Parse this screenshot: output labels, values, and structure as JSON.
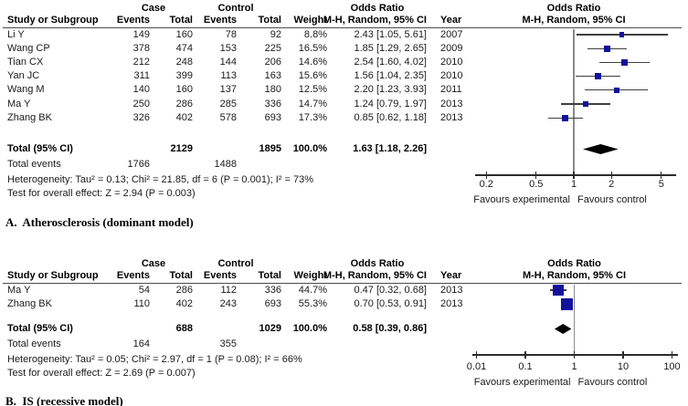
{
  "colors": {
    "marker_square": "#11119c",
    "ci_line": "#3f3f3f",
    "null_line": "#8a8a8a",
    "axis_line": "#2b2b2b",
    "diamond": "#000000",
    "header_rule": "#4d4d4d",
    "text": "#1a1a1a"
  },
  "labels": {
    "group_case": "Case",
    "group_control": "Control",
    "group_or": "Odds Ratio",
    "col_study": "Study or Subgroup",
    "col_events": "Events",
    "col_total": "Total",
    "col_weight": "Weight",
    "col_mh": "M-H, Random, 95% CI",
    "col_year": "Year",
    "plot_title": "Odds Ratio",
    "plot_subtitle": "M-H, Random, 95% CI",
    "total_label": "Total (95% CI)",
    "total_events_label": "Total events",
    "favours_left": "Favours experimental",
    "favours_right": "Favours control"
  },
  "chart_data": [
    {
      "type": "forest",
      "caption": "A.  Atherosclerosis (dominant model)",
      "effect_measure": "Odds Ratio",
      "method": "M-H, Random, 95% CI",
      "axis": {
        "scale": "log",
        "ticks": [
          0.2,
          0.5,
          1,
          2,
          5
        ],
        "tick_labels": [
          "0.2",
          "0.5",
          "1",
          "2",
          "5"
        ]
      },
      "studies": [
        {
          "study": "Li Y",
          "case_events": "149",
          "case_total": "160",
          "control_events": "78",
          "control_total": "92",
          "weight": "8.8%",
          "weight_pct": 8.8,
          "or": 2.43,
          "ci_low": 1.05,
          "ci_high": 5.61,
          "or_text": "2.43 [1.05, 5.61]",
          "year": "2007"
        },
        {
          "study": "Wang CP",
          "case_events": "378",
          "case_total": "474",
          "control_events": "153",
          "control_total": "225",
          "weight": "16.5%",
          "weight_pct": 16.5,
          "or": 1.85,
          "ci_low": 1.29,
          "ci_high": 2.65,
          "or_text": "1.85 [1.29, 2.65]",
          "year": "2009"
        },
        {
          "study": "Tian CX",
          "case_events": "212",
          "case_total": "248",
          "control_events": "144",
          "control_total": "206",
          "weight": "14.6%",
          "weight_pct": 14.6,
          "or": 2.54,
          "ci_low": 1.6,
          "ci_high": 4.02,
          "or_text": "2.54 [1.60, 4.02]",
          "year": "2010"
        },
        {
          "study": "Yan JC",
          "case_events": "311",
          "case_total": "399",
          "control_events": "113",
          "control_total": "163",
          "weight": "15.6%",
          "weight_pct": 15.6,
          "or": 1.56,
          "ci_low": 1.04,
          "ci_high": 2.35,
          "or_text": "1.56 [1.04, 2.35]",
          "year": "2010"
        },
        {
          "study": "Wang M",
          "case_events": "140",
          "case_total": "160",
          "control_events": "137",
          "control_total": "180",
          "weight": "12.5%",
          "weight_pct": 12.5,
          "or": 2.2,
          "ci_low": 1.23,
          "ci_high": 3.93,
          "or_text": "2.20 [1.23, 3.93]",
          "year": "2011"
        },
        {
          "study": "Ma Y",
          "case_events": "250",
          "case_total": "286",
          "control_events": "285",
          "control_total": "336",
          "weight": "14.7%",
          "weight_pct": 14.7,
          "or": 1.24,
          "ci_low": 0.79,
          "ci_high": 1.97,
          "or_text": "1.24 [0.79, 1.97]",
          "year": "2013"
        },
        {
          "study": "Zhang BK",
          "case_events": "326",
          "case_total": "402",
          "control_events": "578",
          "control_total": "693",
          "weight": "17.3%",
          "weight_pct": 17.3,
          "or": 0.85,
          "ci_low": 0.62,
          "ci_high": 1.18,
          "or_text": "0.85 [0.62, 1.18]",
          "year": "2013"
        }
      ],
      "total": {
        "case_total": "2129",
        "control_total": "1895",
        "weight": "100.0%",
        "or": 1.63,
        "ci_low": 1.18,
        "ci_high": 2.26,
        "or_text": "1.63 [1.18, 2.26]"
      },
      "total_events": {
        "case": "1766",
        "control": "1488"
      },
      "heterogeneity": "Heterogeneity: Tau² = 0.13; Chi² = 21.85, df = 6 (P = 0.001); I² = 73%",
      "overall_effect": "Test for overall effect: Z = 2.94 (P = 0.003)"
    },
    {
      "type": "forest",
      "caption": "B.  IS (recessive model)",
      "effect_measure": "Odds Ratio",
      "method": "M-H, Random, 95% CI",
      "axis": {
        "scale": "log",
        "ticks": [
          0.01,
          0.1,
          1,
          10,
          100
        ],
        "tick_labels": [
          "0.01",
          "0.1",
          "1",
          "10",
          "100"
        ]
      },
      "studies": [
        {
          "study": "Ma Y",
          "case_events": "54",
          "case_total": "286",
          "control_events": "112",
          "control_total": "336",
          "weight": "44.7%",
          "weight_pct": 44.7,
          "or": 0.47,
          "ci_low": 0.32,
          "ci_high": 0.68,
          "or_text": "0.47 [0.32, 0.68]",
          "year": "2013"
        },
        {
          "study": "Zhang BK",
          "case_events": "110",
          "case_total": "402",
          "control_events": "243",
          "control_total": "693",
          "weight": "55.3%",
          "weight_pct": 55.3,
          "or": 0.7,
          "ci_low": 0.53,
          "ci_high": 0.91,
          "or_text": "0.70 [0.53, 0.91]",
          "year": "2013"
        }
      ],
      "total": {
        "case_total": "688",
        "control_total": "1029",
        "weight": "100.0%",
        "or": 0.58,
        "ci_low": 0.39,
        "ci_high": 0.86,
        "or_text": "0.58 [0.39, 0.86]"
      },
      "total_events": {
        "case": "164",
        "control": "355"
      },
      "heterogeneity": "Heterogeneity: Tau² = 0.05; Chi² = 2.97, df = 1 (P = 0.08); I² = 66%",
      "overall_effect": "Test for overall effect: Z = 2.69 (P = 0.007)"
    }
  ]
}
